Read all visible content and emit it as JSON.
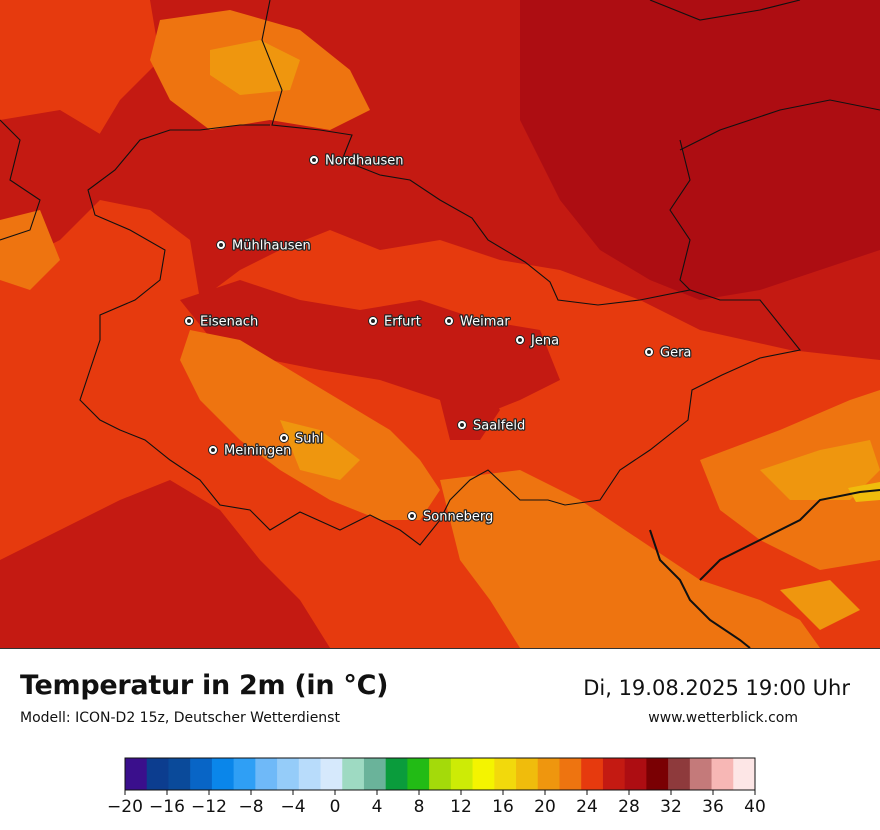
{
  "header": {
    "title": "Temperatur in 2m (in °C)",
    "subtitle": "Modell: ICON-D2 15z, Deutscher Wetterdienst",
    "datetime": "Di, 19.08.2025 19:00 Uhr",
    "website": "www.wetterblick.com"
  },
  "cities": [
    {
      "name": "Nordhausen"
    },
    {
      "name": "Mühlhausen"
    },
    {
      "name": "Eisenach"
    },
    {
      "name": "Erfurt"
    },
    {
      "name": "Weimar"
    },
    {
      "name": "Jena"
    },
    {
      "name": "Gera"
    },
    {
      "name": "Suhl"
    },
    {
      "name": "Meiningen"
    },
    {
      "name": "Saalfeld"
    },
    {
      "name": "Sonneberg"
    }
  ],
  "legend": {
    "unit": "°C",
    "min": -20,
    "max": 40,
    "tick_labels": [
      "−20",
      "−16",
      "−12",
      "−8",
      "−4",
      "0",
      "4",
      "8",
      "12",
      "16",
      "20",
      "24",
      "28",
      "32",
      "36",
      "40"
    ],
    "colors": [
      "#3a0f8c",
      "#0c3d8f",
      "#0a4a9a",
      "#0865c6",
      "#0a86ea",
      "#2f9ff5",
      "#6fb9f8",
      "#95ccf9",
      "#b8dcfb",
      "#d6e9fc",
      "#9edac2",
      "#6ab39a",
      "#0a9c3c",
      "#22bb15",
      "#a4da0a",
      "#cdeb06",
      "#f4f400",
      "#f2d90c",
      "#f0bc0c",
      "#ef960e",
      "#ee7410",
      "#e63a0e",
      "#c41a12",
      "#ad0d12",
      "#7a0003",
      "#8e3a3c",
      "#c47a7a",
      "#f7b7b5",
      "#fde6e6"
    ]
  },
  "map": {
    "colors": {
      "c20": "#f0bc0c",
      "c22": "#ef960e",
      "c24": "#ee7410",
      "c26": "#e63a0e",
      "c28": "#c41a12",
      "c30": "#ad0d12",
      "border": "#111111"
    }
  }
}
